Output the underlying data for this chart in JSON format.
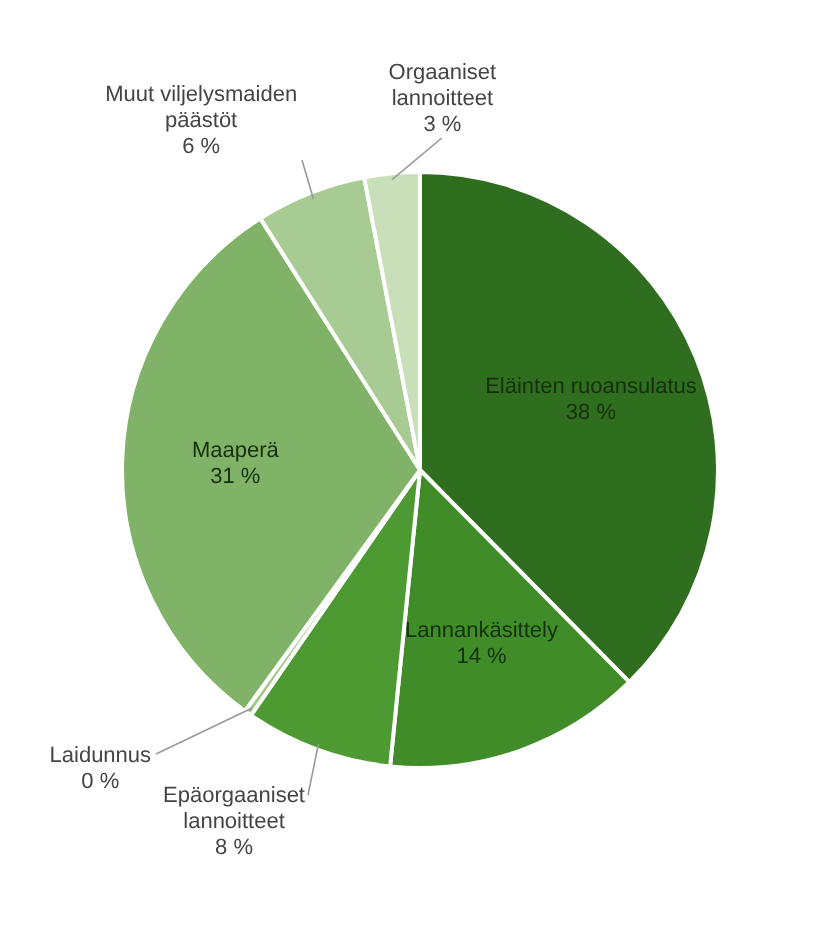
{
  "chart_data": {
    "type": "pie",
    "categories": [
      "Eläinten ruoansulatus",
      "Lannankäsittely",
      "Epäorgaaniset lannoitteet",
      "Laidunnus",
      "Maaperä",
      "Muut viljelysmaiden päästöt",
      "Orgaaniset lannoitteet"
    ],
    "values": [
      37.6,
      14,
      8,
      0.4,
      31,
      6,
      3
    ],
    "value_labels": [
      "38 %",
      "14 %",
      "8 %",
      "0 %",
      "31 %",
      "6 %",
      "3 %"
    ],
    "colors": [
      "#2f6e1f",
      "#3f8c29",
      "#4d9a33",
      "#a3c98b",
      "#80b367",
      "#a8cb93",
      "#c8dfba"
    ]
  }
}
